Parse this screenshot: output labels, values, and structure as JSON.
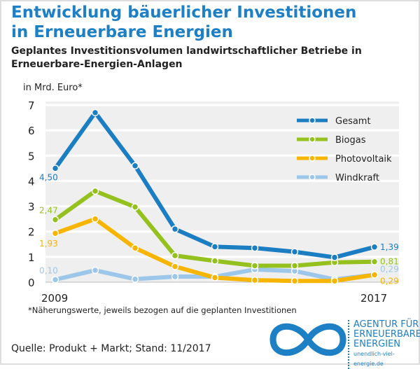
{
  "title": "Entwicklung bäuerlicher Investitionen in Erneuerbare Energien",
  "title_lines": [
    "Entwicklung bäuerlicher Investitionen",
    "in Erneuerbare Energien"
  ],
  "subtitle_lines": [
    "Geplantes Investitionsvolumen landwirtschaftlicher Betriebe in",
    "Erneuerbare-Energien-Anlagen"
  ],
  "footnote": "*Näherungswerte, jeweils bezogen auf die geplanten Investitionen",
  "source": "Quelle: Produkt + Markt; Stand: 11/2017",
  "logo": {
    "lines": [
      "AGENTUR FÜR",
      "ERNEUERBARE",
      "ENERGIEN"
    ],
    "url": "unendlich-viel-energie.de"
  },
  "chart_data": {
    "type": "line",
    "ylabel": "in Mrd. Euro*",
    "ylim": [
      0,
      7
    ],
    "yticks": [
      "0",
      "1",
      "2",
      "3",
      "4",
      "5",
      "6",
      "7"
    ],
    "x": [
      2009,
      2010,
      2011,
      2012,
      2013,
      2014,
      2015,
      2016,
      2017
    ],
    "xtick_labels": [
      "2009",
      "2017"
    ],
    "legend_position": "top-right",
    "series": [
      {
        "name": "Gesamt",
        "color": "#1b7dc2",
        "values": [
          4.5,
          6.7,
          4.6,
          2.1,
          1.4,
          1.35,
          1.2,
          0.98,
          1.39
        ],
        "start_label": "4,50",
        "end_label": "1,39"
      },
      {
        "name": "Biogas",
        "color": "#95c11f",
        "values": [
          2.47,
          3.6,
          2.97,
          1.05,
          0.84,
          0.65,
          0.65,
          0.78,
          0.81
        ],
        "start_label": "2,47",
        "end_label": "0,81"
      },
      {
        "name": "Photovoltaik",
        "color": "#f7b500",
        "values": [
          1.93,
          2.5,
          1.35,
          0.62,
          0.18,
          0.08,
          0.05,
          0.05,
          0.29
        ],
        "start_label": "1,93",
        "end_label": "0,29"
      },
      {
        "name": "Windkraft",
        "color": "#9cc7ea",
        "values": [
          0.1,
          0.47,
          0.12,
          0.22,
          0.22,
          0.5,
          0.44,
          0.11,
          0.29
        ],
        "start_label": "0,10",
        "end_label": "0,29"
      }
    ]
  }
}
